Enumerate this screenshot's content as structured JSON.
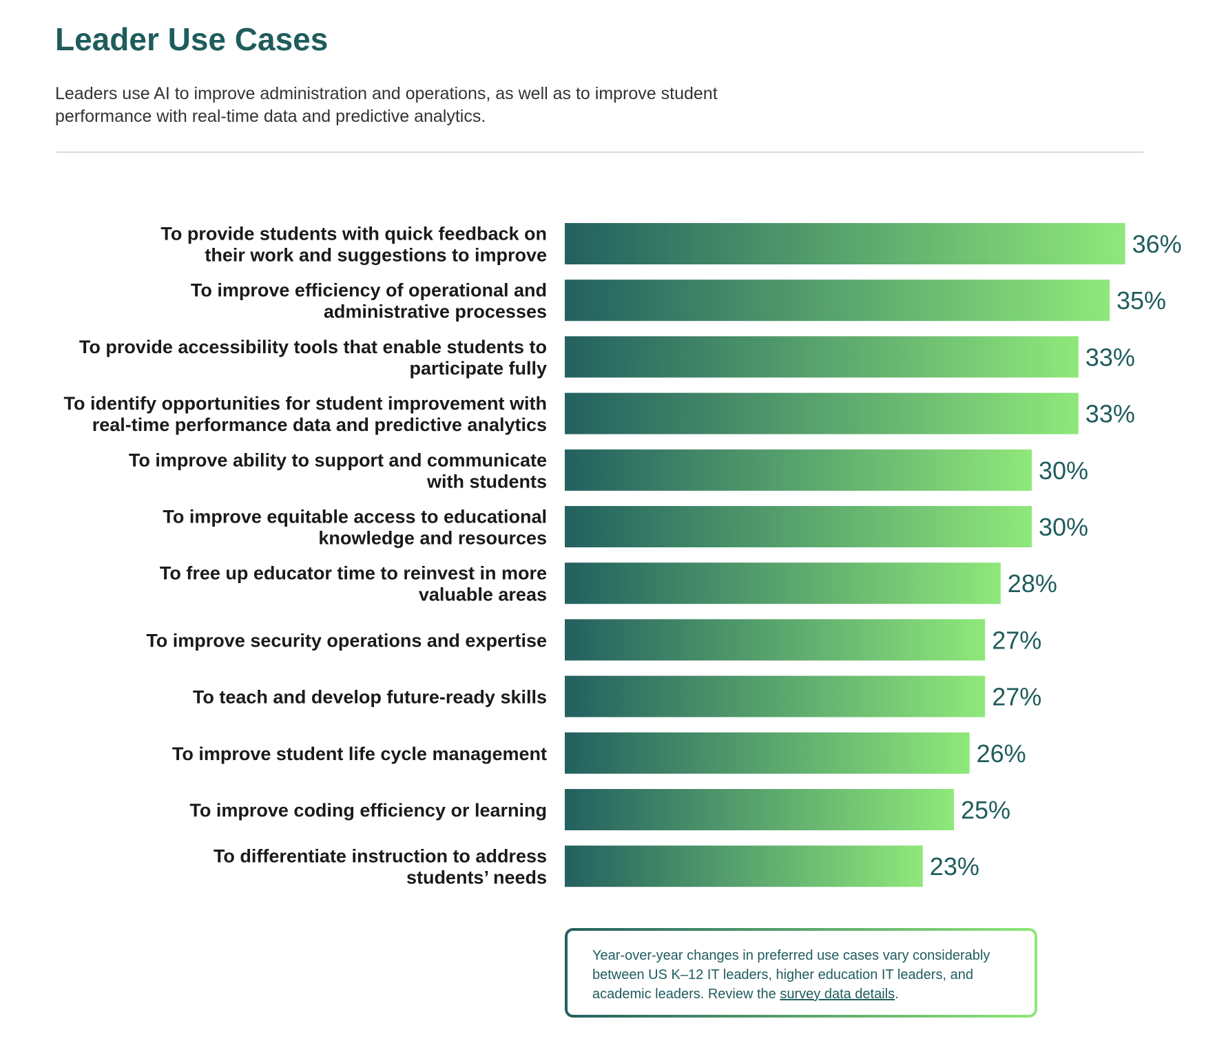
{
  "header": {
    "title": "Leader Use Cases",
    "subtitle": "Leaders use AI to improve administration and operations, as well as to improve student performance with real-time data and predictive analytics."
  },
  "colors": {
    "title": "#1f5c5c",
    "bar_gradient_start": "#236060",
    "bar_gradient_end": "#8fe87a",
    "value_label": "#1f5c5c"
  },
  "chart_data": {
    "type": "bar",
    "orientation": "horizontal",
    "categories": [
      [
        "To provide students with quick feedback on",
        "their work and suggestions to improve"
      ],
      [
        "To improve efficiency of operational and",
        "administrative processes"
      ],
      [
        "To provide accessibility tools that enable students to",
        "participate fully"
      ],
      [
        "To identify opportunities for student improvement with",
        "real-time performance data and predictive analytics"
      ],
      [
        "To improve ability to support and communicate",
        "with students"
      ],
      [
        "To improve equitable access to educational",
        "knowledge and resources"
      ],
      [
        "To free up educator time to reinvest in more",
        "valuable areas"
      ],
      [
        "To improve security operations and expertise"
      ],
      [
        "To teach and develop future-ready skills"
      ],
      [
        "To improve student life cycle management"
      ],
      [
        "To improve coding efficiency or learning"
      ],
      [
        "To differentiate instruction to address",
        "students’ needs"
      ]
    ],
    "values": [
      36,
      35,
      33,
      33,
      30,
      30,
      28,
      27,
      27,
      26,
      25,
      23
    ],
    "value_labels": [
      "36%",
      "35%",
      "33%",
      "33%",
      "30%",
      "30%",
      "28%",
      "27%",
      "27%",
      "26%",
      "25%",
      "23%"
    ],
    "unit": "%",
    "grid": false,
    "legend": false
  },
  "note": {
    "text": "Year-over-year changes in preferred use cases vary considerably between US K–12 IT leaders, higher education IT leaders, and academic leaders. Review the ",
    "link_text": "survey data details",
    "suffix": "."
  }
}
